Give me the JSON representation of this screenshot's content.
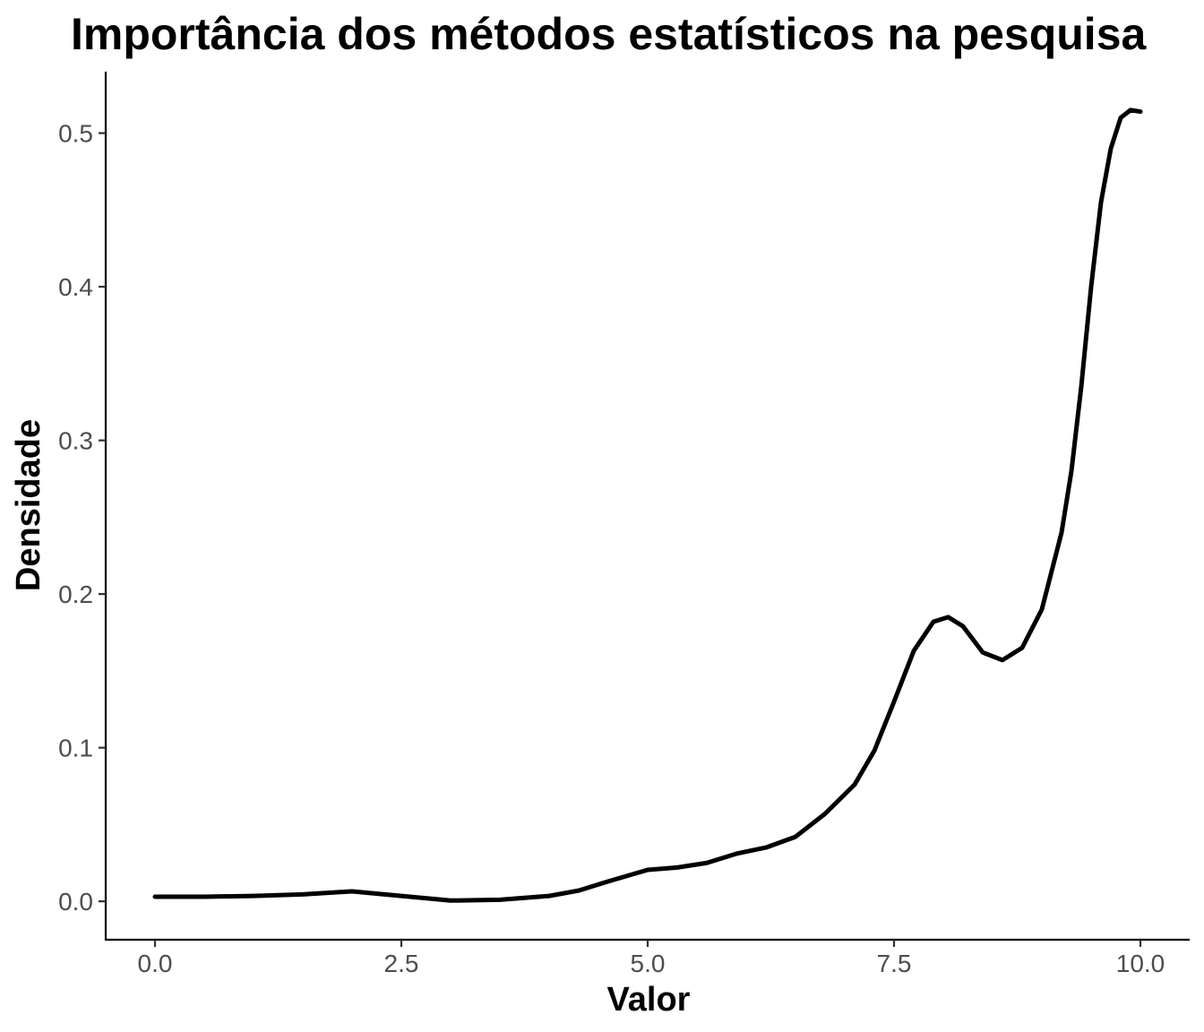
{
  "chart_data": {
    "type": "line",
    "title": "Importância dos métodos estatísticos na pesquisa",
    "xlabel": "Valor",
    "ylabel": "Densidade",
    "xlim": [
      -0.5,
      10.5
    ],
    "ylim": [
      -0.025,
      0.54
    ],
    "x_ticks": [
      0,
      2.5,
      5,
      7.5,
      10
    ],
    "x_tick_labels": [
      "0.0",
      "2.5",
      "5.0",
      "7.5",
      "10.0"
    ],
    "y_ticks": [
      0,
      0.1,
      0.2,
      0.3,
      0.4,
      0.5
    ],
    "y_tick_labels": [
      "0.0",
      "0.1",
      "0.2",
      "0.3",
      "0.4",
      "0.5"
    ],
    "grid": false,
    "series": [
      {
        "name": "densidade",
        "color": "#000000",
        "x": [
          0,
          0.5,
          1.0,
          1.5,
          2.0,
          2.5,
          3.0,
          3.5,
          4.0,
          4.3,
          4.6,
          5.0,
          5.3,
          5.6,
          5.9,
          6.2,
          6.5,
          6.8,
          7.1,
          7.3,
          7.5,
          7.7,
          7.9,
          8.05,
          8.2,
          8.4,
          8.6,
          8.8,
          9.0,
          9.2,
          9.3,
          9.4,
          9.5,
          9.6,
          9.7,
          9.8,
          9.9,
          10.0
        ],
        "y": [
          0.003,
          0.003,
          0.0035,
          0.0045,
          0.0065,
          0.0035,
          0.0005,
          0.001,
          0.0035,
          0.007,
          0.013,
          0.0205,
          0.022,
          0.025,
          0.031,
          0.035,
          0.042,
          0.057,
          0.076,
          0.098,
          0.13,
          0.163,
          0.182,
          0.185,
          0.179,
          0.162,
          0.157,
          0.165,
          0.19,
          0.24,
          0.28,
          0.335,
          0.4,
          0.455,
          0.49,
          0.51,
          0.515,
          0.514
        ]
      }
    ]
  }
}
